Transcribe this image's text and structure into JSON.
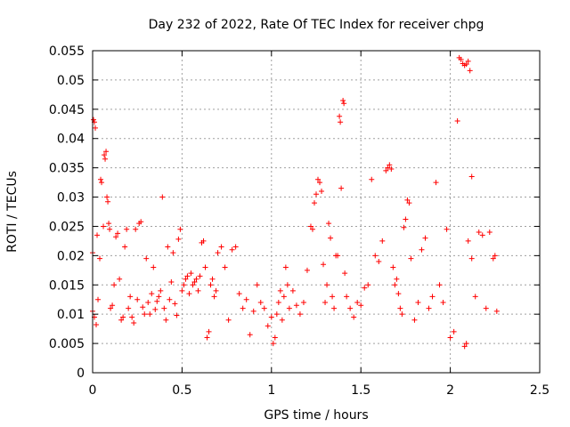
{
  "chart_data": {
    "type": "scatter",
    "title": "Day 232 of 2022, Rate Of TEC Index for receiver chpg",
    "xlabel": "GPS time / hours",
    "ylabel": "ROTI / TECUs",
    "xlim": [
      0,
      2.5
    ],
    "ylim": [
      0,
      0.055
    ],
    "x_ticks": [
      "0",
      "0.5",
      "1",
      "1.5",
      "2",
      "2.5"
    ],
    "y_ticks": [
      "0",
      "0.005",
      "0.01",
      "0.015",
      "0.02",
      "0.025",
      "0.03",
      "0.035",
      "0.04",
      "0.045",
      "0.05",
      "0.055"
    ],
    "x_tick_values": [
      0,
      0.5,
      1,
      1.5,
      2,
      2.5
    ],
    "y_tick_values": [
      0,
      0.005,
      0.01,
      0.015,
      0.02,
      0.025,
      0.03,
      0.035,
      0.04,
      0.045,
      0.05,
      0.055
    ],
    "grid": true,
    "marker": "+",
    "color": "#ff0000",
    "series": [
      {
        "points": [
          [
            0.0,
            0.0105
          ],
          [
            0.0,
            0.0205
          ],
          [
            0.005,
            0.0432
          ],
          [
            0.01,
            0.0428
          ],
          [
            0.015,
            0.0418
          ],
          [
            0.01,
            0.0095
          ],
          [
            0.02,
            0.0082
          ],
          [
            0.03,
            0.0125
          ],
          [
            0.025,
            0.0235
          ],
          [
            0.04,
            0.0195
          ],
          [
            0.045,
            0.033
          ],
          [
            0.05,
            0.0325
          ],
          [
            0.06,
            0.025
          ],
          [
            0.065,
            0.0372
          ],
          [
            0.07,
            0.0365
          ],
          [
            0.075,
            0.0378
          ],
          [
            0.08,
            0.03
          ],
          [
            0.085,
            0.0292
          ],
          [
            0.09,
            0.0255
          ],
          [
            0.095,
            0.0245
          ],
          [
            0.1,
            0.011
          ],
          [
            0.11,
            0.0115
          ],
          [
            0.12,
            0.015
          ],
          [
            0.13,
            0.0232
          ],
          [
            0.14,
            0.0238
          ],
          [
            0.15,
            0.016
          ],
          [
            0.16,
            0.009
          ],
          [
            0.17,
            0.0095
          ],
          [
            0.18,
            0.0215
          ],
          [
            0.19,
            0.0245
          ],
          [
            0.2,
            0.011
          ],
          [
            0.21,
            0.013
          ],
          [
            0.22,
            0.0095
          ],
          [
            0.23,
            0.0085
          ],
          [
            0.24,
            0.0245
          ],
          [
            0.25,
            0.0125
          ],
          [
            0.26,
            0.0255
          ],
          [
            0.27,
            0.0258
          ],
          [
            0.28,
            0.0112
          ],
          [
            0.29,
            0.01
          ],
          [
            0.3,
            0.0195
          ],
          [
            0.31,
            0.012
          ],
          [
            0.32,
            0.01
          ],
          [
            0.33,
            0.0135
          ],
          [
            0.34,
            0.018
          ],
          [
            0.35,
            0.0108
          ],
          [
            0.36,
            0.0122
          ],
          [
            0.37,
            0.013
          ],
          [
            0.38,
            0.014
          ],
          [
            0.39,
            0.03
          ],
          [
            0.4,
            0.011
          ],
          [
            0.41,
            0.009
          ],
          [
            0.42,
            0.0215
          ],
          [
            0.43,
            0.0125
          ],
          [
            0.44,
            0.0155
          ],
          [
            0.45,
            0.0205
          ],
          [
            0.46,
            0.0118
          ],
          [
            0.47,
            0.0098
          ],
          [
            0.48,
            0.0228
          ],
          [
            0.49,
            0.0245
          ],
          [
            0.5,
            0.014
          ],
          [
            0.51,
            0.015
          ],
          [
            0.52,
            0.016
          ],
          [
            0.53,
            0.0165
          ],
          [
            0.54,
            0.0135
          ],
          [
            0.55,
            0.017
          ],
          [
            0.56,
            0.015
          ],
          [
            0.57,
            0.0155
          ],
          [
            0.58,
            0.016
          ],
          [
            0.59,
            0.014
          ],
          [
            0.6,
            0.0165
          ],
          [
            0.61,
            0.0222
          ],
          [
            0.62,
            0.0225
          ],
          [
            0.63,
            0.018
          ],
          [
            0.64,
            0.006
          ],
          [
            0.65,
            0.007
          ],
          [
            0.66,
            0.015
          ],
          [
            0.67,
            0.016
          ],
          [
            0.68,
            0.013
          ],
          [
            0.69,
            0.014
          ],
          [
            0.7,
            0.0205
          ],
          [
            0.72,
            0.0215
          ],
          [
            0.74,
            0.018
          ],
          [
            0.76,
            0.009
          ],
          [
            0.78,
            0.021
          ],
          [
            0.8,
            0.0215
          ],
          [
            0.82,
            0.0135
          ],
          [
            0.84,
            0.011
          ],
          [
            0.86,
            0.0125
          ],
          [
            0.88,
            0.0065
          ],
          [
            0.9,
            0.0105
          ],
          [
            0.92,
            0.015
          ],
          [
            0.94,
            0.012
          ],
          [
            0.96,
            0.011
          ],
          [
            0.98,
            0.008
          ],
          [
            1.0,
            0.0095
          ],
          [
            1.01,
            0.005
          ],
          [
            1.02,
            0.006
          ],
          [
            1.03,
            0.01
          ],
          [
            1.04,
            0.012
          ],
          [
            1.05,
            0.014
          ],
          [
            1.06,
            0.009
          ],
          [
            1.07,
            0.013
          ],
          [
            1.08,
            0.018
          ],
          [
            1.09,
            0.015
          ],
          [
            1.1,
            0.011
          ],
          [
            1.12,
            0.014
          ],
          [
            1.14,
            0.0115
          ],
          [
            1.16,
            0.01
          ],
          [
            1.18,
            0.012
          ],
          [
            1.2,
            0.0175
          ],
          [
            1.22,
            0.025
          ],
          [
            1.23,
            0.0245
          ],
          [
            1.24,
            0.029
          ],
          [
            1.25,
            0.0305
          ],
          [
            1.26,
            0.033
          ],
          [
            1.27,
            0.0325
          ],
          [
            1.28,
            0.031
          ],
          [
            1.29,
            0.0185
          ],
          [
            1.3,
            0.012
          ],
          [
            1.31,
            0.015
          ],
          [
            1.32,
            0.0255
          ],
          [
            1.33,
            0.023
          ],
          [
            1.34,
            0.013
          ],
          [
            1.35,
            0.011
          ],
          [
            1.36,
            0.02
          ],
          [
            1.37,
            0.02
          ],
          [
            1.38,
            0.0438
          ],
          [
            1.385,
            0.0428
          ],
          [
            1.39,
            0.0315
          ],
          [
            1.4,
            0.0465
          ],
          [
            1.405,
            0.046
          ],
          [
            1.41,
            0.017
          ],
          [
            1.42,
            0.013
          ],
          [
            1.44,
            0.011
          ],
          [
            1.46,
            0.0095
          ],
          [
            1.48,
            0.012
          ],
          [
            1.5,
            0.0115
          ],
          [
            1.52,
            0.0145
          ],
          [
            1.54,
            0.015
          ],
          [
            1.56,
            0.033
          ],
          [
            1.58,
            0.02
          ],
          [
            1.6,
            0.019
          ],
          [
            1.62,
            0.0225
          ],
          [
            1.64,
            0.0345
          ],
          [
            1.65,
            0.035
          ],
          [
            1.66,
            0.0355
          ],
          [
            1.67,
            0.0348
          ],
          [
            1.68,
            0.018
          ],
          [
            1.69,
            0.015
          ],
          [
            1.7,
            0.016
          ],
          [
            1.71,
            0.0135
          ],
          [
            1.72,
            0.011
          ],
          [
            1.73,
            0.01
          ],
          [
            1.74,
            0.0248
          ],
          [
            1.75,
            0.0262
          ],
          [
            1.76,
            0.0295
          ],
          [
            1.77,
            0.029
          ],
          [
            1.78,
            0.0195
          ],
          [
            1.8,
            0.009
          ],
          [
            1.82,
            0.012
          ],
          [
            1.84,
            0.021
          ],
          [
            1.86,
            0.023
          ],
          [
            1.88,
            0.011
          ],
          [
            1.9,
            0.013
          ],
          [
            1.92,
            0.0325
          ],
          [
            1.94,
            0.015
          ],
          [
            1.96,
            0.012
          ],
          [
            1.98,
            0.0245
          ],
          [
            2.0,
            0.006
          ],
          [
            2.02,
            0.007
          ],
          [
            2.04,
            0.043
          ],
          [
            2.05,
            0.0538
          ],
          [
            2.06,
            0.0535
          ],
          [
            2.07,
            0.0528
          ],
          [
            2.08,
            0.0525
          ],
          [
            2.09,
            0.0527
          ],
          [
            2.1,
            0.0532
          ],
          [
            2.11,
            0.0516
          ],
          [
            2.12,
            0.0335
          ],
          [
            2.08,
            0.0045
          ],
          [
            2.09,
            0.005
          ],
          [
            2.1,
            0.0225
          ],
          [
            2.12,
            0.0195
          ],
          [
            2.14,
            0.013
          ],
          [
            2.16,
            0.024
          ],
          [
            2.18,
            0.0235
          ],
          [
            2.2,
            0.011
          ],
          [
            2.22,
            0.024
          ],
          [
            2.24,
            0.0195
          ],
          [
            2.25,
            0.02
          ],
          [
            2.26,
            0.0105
          ]
        ]
      }
    ]
  }
}
